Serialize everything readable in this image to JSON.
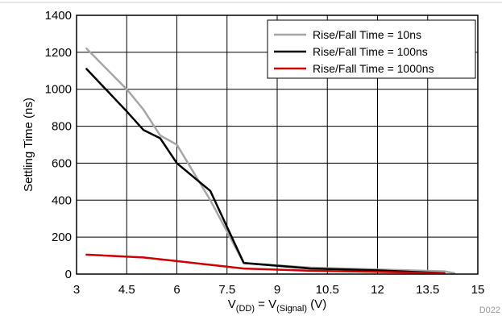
{
  "chart_data": {
    "type": "line",
    "xlabel": {
      "main": "V",
      "sub1": "(DD)",
      "mid": " = V",
      "sub2": "(Signal)",
      "end": " (V)"
    },
    "ylabel": "Settling Time (ns)",
    "xlim": [
      3,
      15
    ],
    "ylim": [
      0,
      1400
    ],
    "xticks": [
      3,
      4.5,
      6,
      7.5,
      9,
      10.5,
      12,
      13.5,
      15
    ],
    "xtick_labels": [
      "3",
      "4.5",
      "6",
      "7.5",
      "9",
      "10.5",
      "12",
      "13.5",
      "15"
    ],
    "yticks": [
      0,
      200,
      400,
      600,
      800,
      1000,
      1200,
      1400
    ],
    "ytick_labels": [
      "0",
      "200",
      "400",
      "600",
      "800",
      "1000",
      "1200",
      "1400"
    ],
    "grid": true,
    "legend_position": "top-right",
    "figure_id": "D022",
    "series": [
      {
        "name": "Rise/Fall Time = 10ns",
        "color": "#a6a6a6",
        "x": [
          3.3,
          4.5,
          5.0,
          5.5,
          6.0,
          7.0,
          8.0,
          10.0,
          12.0,
          14.0,
          14.3
        ],
        "y": [
          1220,
          1000,
          890,
          750,
          700,
          400,
          60,
          35,
          25,
          15,
          5
        ]
      },
      {
        "name": "Rise/Fall Time = 100ns",
        "color": "#000000",
        "x": [
          3.3,
          4.5,
          5.0,
          5.5,
          6.0,
          7.0,
          8.0,
          10.0,
          12.0,
          14.0
        ],
        "y": [
          1110,
          880,
          780,
          735,
          600,
          450,
          60,
          30,
          20,
          5
        ]
      },
      {
        "name": "Rise/Fall Time = 1000ns",
        "color": "#cc0000",
        "x": [
          3.3,
          5.0,
          6.0,
          7.0,
          8.0,
          10.0,
          12.0,
          14.0
        ],
        "y": [
          105,
          90,
          70,
          50,
          30,
          18,
          12,
          5
        ]
      }
    ]
  }
}
